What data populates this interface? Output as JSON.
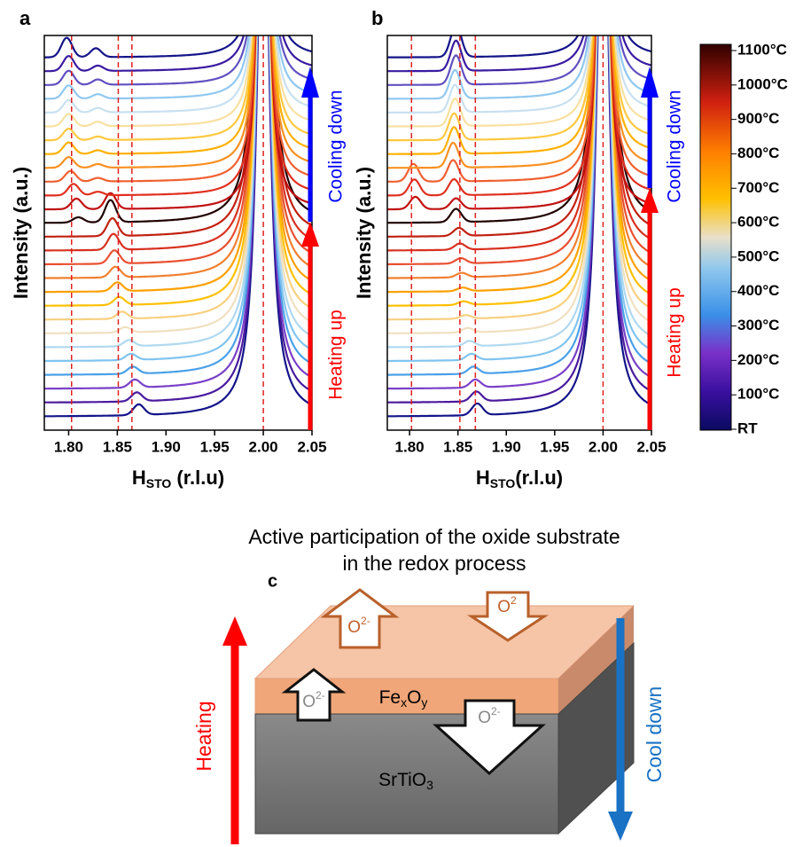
{
  "chart_data": [
    {
      "type": "line",
      "panel_label": "a",
      "y_label": "Intensity (a.u.)",
      "x_label": {
        "main": "H",
        "sub": "STO",
        "rest": " (r.l.u)"
      },
      "xlim": [
        1.775,
        2.05
      ],
      "xticks": [
        {
          "value": 1.8,
          "label": "1.80"
        },
        1.85,
        {
          "value": 1.9,
          "label": "1.90"
        },
        1.95,
        {
          "value": 2.0,
          "label": "2.00"
        },
        2.05
      ],
      "reference_lines": [
        1.803,
        1.851,
        1.865,
        2.0
      ],
      "annotations": [
        "Cooling down",
        "Heating up"
      ],
      "series": [
        {
          "color": "#14148a",
          "peaks": [
            [
              1.872,
              1.2
            ]
          ]
        },
        {
          "color": "#4a1a9e",
          "peaks": [
            [
              1.87,
              1.0
            ]
          ]
        },
        {
          "color": "#7a40c8",
          "peaks": [
            [
              1.868,
              0.9
            ]
          ]
        },
        {
          "color": "#4aa0e8",
          "peaks": [
            [
              1.866,
              0.8
            ]
          ]
        },
        {
          "color": "#80c4f0",
          "peaks": [
            [
              1.864,
              0.7
            ]
          ]
        },
        {
          "color": "#b0d8f0",
          "peaks": [
            [
              1.862,
              0.7
            ]
          ]
        },
        {
          "color": "#f0e0c0",
          "peaks": [
            [
              1.858,
              0.6
            ]
          ]
        },
        {
          "color": "#f8d080",
          "peaks": [
            [
              1.855,
              0.8
            ]
          ]
        },
        {
          "color": "#ffc000",
          "peaks": [
            [
              1.852,
              0.9
            ]
          ]
        },
        {
          "color": "#ffa000",
          "peaks": [
            [
              1.85,
              1.0
            ]
          ]
        },
        {
          "color": "#f08030",
          "peaks": [
            [
              1.848,
              1.2
            ]
          ]
        },
        {
          "color": "#e85030",
          "peaks": [
            [
              1.847,
              1.5
            ]
          ]
        },
        {
          "color": "#d83020",
          "peaks": [
            [
              1.846,
              1.8
            ]
          ]
        },
        {
          "color": "#c02010",
          "peaks": [
            [
              1.845,
              2.0
            ]
          ]
        },
        {
          "color": "#200000",
          "peaks": [
            [
              1.843,
              2.5
            ],
            [
              1.81,
              0.6
            ]
          ]
        },
        {
          "color": "#c01010",
          "peaks": [
            [
              1.808,
              1.2
            ],
            [
              1.843,
              1.8
            ]
          ]
        },
        {
          "color": "#e03020",
          "peaks": [
            [
              1.805,
              1.3
            ],
            [
              1.83,
              0.4
            ]
          ]
        },
        {
          "color": "#f06030",
          "peaks": [
            [
              1.802,
              1.2
            ],
            [
              1.83,
              0.4
            ]
          ]
        },
        {
          "color": "#f89020",
          "peaks": [
            [
              1.8,
              1.2
            ],
            [
              1.83,
              0.4
            ]
          ]
        },
        {
          "color": "#ffb000",
          "peaks": [
            [
              1.8,
              1.3
            ],
            [
              1.83,
              0.4
            ]
          ]
        },
        {
          "color": "#ffc840",
          "peaks": [
            [
              1.8,
              1.3
            ],
            [
              1.83,
              0.4
            ]
          ]
        },
        {
          "color": "#f8e0a0",
          "peaks": [
            [
              1.8,
              1.4
            ],
            [
              1.83,
              0.5
            ]
          ]
        },
        {
          "color": "#c8e0f0",
          "peaks": [
            [
              1.8,
              1.4
            ],
            [
              1.83,
              0.5
            ]
          ]
        },
        {
          "color": "#90c8f0",
          "peaks": [
            [
              1.8,
              1.5
            ],
            [
              1.83,
              0.5
            ]
          ]
        },
        {
          "color": "#6050c0",
          "peaks": [
            [
              1.8,
              1.6
            ],
            [
              1.83,
              0.6
            ]
          ]
        },
        {
          "color": "#3a1aa0",
          "peaks": [
            [
              1.8,
              1.7
            ],
            [
              1.83,
              0.6
            ]
          ]
        },
        {
          "color": "#14148a",
          "peaks": [
            [
              1.798,
              2.2
            ],
            [
              1.828,
              1.0
            ]
          ]
        }
      ]
    },
    {
      "type": "line",
      "panel_label": "b",
      "y_label": "Intensity (a.u.)",
      "x_label": {
        "main": "H",
        "sub": "STO",
        "rest": "(r.l.u)"
      },
      "xlim": [
        1.777,
        2.05
      ],
      "xticks": [
        {
          "value": 1.8,
          "label": "1.80"
        },
        1.85,
        {
          "value": 1.9,
          "label": "1.90"
        },
        1.95,
        {
          "value": 2.0,
          "label": "2.00"
        },
        2.05
      ],
      "reference_lines": [
        1.802,
        1.852,
        1.868,
        2.0
      ],
      "annotations": [
        "Cooling down",
        "Heating up"
      ],
      "series": [
        {
          "color": "#14148a",
          "peaks": [
            [
              1.87,
              1.3
            ]
          ]
        },
        {
          "color": "#4a1a9e",
          "peaks": [
            [
              1.869,
              1.1
            ]
          ]
        },
        {
          "color": "#7a40c8",
          "peaks": [
            [
              1.868,
              0.9
            ]
          ]
        },
        {
          "color": "#4aa0e8",
          "peaks": [
            [
              1.866,
              0.8
            ]
          ]
        },
        {
          "color": "#80c4f0",
          "peaks": [
            [
              1.864,
              0.7
            ]
          ]
        },
        {
          "color": "#b0d8f0",
          "peaks": [
            [
              1.862,
              0.6
            ]
          ]
        },
        {
          "color": "#f0e0c0",
          "peaks": [
            [
              1.86,
              0.5
            ]
          ]
        },
        {
          "color": "#f8d080",
          "peaks": [
            [
              1.858,
              0.4
            ]
          ]
        },
        {
          "color": "#ffc000",
          "peaks": [
            [
              1.856,
              0.4
            ]
          ]
        },
        {
          "color": "#ffa000",
          "peaks": [
            [
              1.855,
              0.4
            ]
          ]
        },
        {
          "color": "#f08030",
          "peaks": [
            [
              1.854,
              0.5
            ]
          ]
        },
        {
          "color": "#e85030",
          "peaks": [
            [
              1.853,
              0.6
            ]
          ]
        },
        {
          "color": "#d83020",
          "peaks": [
            [
              1.852,
              0.7
            ]
          ]
        },
        {
          "color": "#c02010",
          "peaks": [
            [
              1.851,
              0.9
            ]
          ]
        },
        {
          "color": "#200000",
          "peaks": [
            [
              1.848,
              1.5
            ]
          ]
        },
        {
          "color": "#c01010",
          "peaks": [
            [
              1.806,
              1.4
            ],
            [
              1.848,
              1.2
            ]
          ]
        },
        {
          "color": "#e03020",
          "peaks": [
            [
              1.805,
              1.8
            ],
            [
              1.846,
              1.8
            ]
          ]
        },
        {
          "color": "#f06030",
          "peaks": [
            [
              1.804,
              2.0
            ],
            [
              1.845,
              2.4
            ]
          ]
        },
        {
          "color": "#f89020",
          "peaks": [
            [
              1.845,
              2.8
            ]
          ]
        },
        {
          "color": "#ffb000",
          "peaks": [
            [
              1.846,
              3.0
            ]
          ]
        },
        {
          "color": "#ffc840",
          "peaks": [
            [
              1.846,
              3.0
            ]
          ]
        },
        {
          "color": "#f8e0a0",
          "peaks": [
            [
              1.847,
              3.1
            ]
          ]
        },
        {
          "color": "#c8e0f0",
          "peaks": [
            [
              1.847,
              3.1
            ]
          ]
        },
        {
          "color": "#90c8f0",
          "peaks": [
            [
              1.847,
              3.2
            ]
          ]
        },
        {
          "color": "#6050c0",
          "peaks": [
            [
              1.848,
              3.3
            ]
          ]
        },
        {
          "color": "#3a1aa0",
          "peaks": [
            [
              1.848,
              3.4
            ]
          ]
        },
        {
          "color": "#14148a",
          "peaks": [
            [
              1.848,
              3.6
            ]
          ]
        }
      ]
    }
  ],
  "colorbar": {
    "labels": [
      "1100°C",
      "1000°C",
      "900°C",
      "800°C",
      "700°C",
      "600°C",
      "500°C",
      "400°C",
      "300°C",
      "200°C",
      "100°C",
      "RT"
    ]
  },
  "diagram": {
    "title": [
      "Active participation of the oxide substrate",
      "in the redox process"
    ],
    "panel_label": "c",
    "left_arrow": "Heating",
    "right_arrow": "Cool down",
    "film": {
      "base": "Fe",
      "sub1": "x",
      "mid": "O",
      "sub2": "y"
    },
    "substrate": {
      "base": "SrTiO",
      "sub": "3"
    },
    "ions": [
      {
        "base": "O",
        "sup": "2-"
      },
      {
        "base": "O",
        "sup": "2"
      },
      {
        "base": "O",
        "sup": "2-"
      },
      {
        "base": "O",
        "sup": "2-"
      }
    ]
  }
}
